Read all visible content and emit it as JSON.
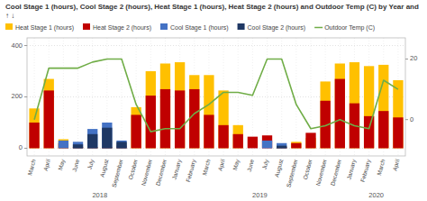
{
  "chart_data": {
    "type": "bar",
    "title": "Cool Stage 1 (hours), Cool Stage 2 (hours), Heat Stage 1 (hours), Heat Stage 2 (hours) and Outdoor Temp (C) by Year and  ↑ ↓",
    "categories": [
      "March",
      "April",
      "May",
      "June",
      "July",
      "August",
      "September",
      "October",
      "November",
      "December",
      "January",
      "February",
      "March",
      "April",
      "May",
      "June",
      "July",
      "August",
      "September",
      "October",
      "November",
      "December",
      "January",
      "February",
      "March",
      "April"
    ],
    "series": [
      {
        "name": "Heat Stage 1 (hours)",
        "type": "bar",
        "color": "#ffc000",
        "values": [
          155,
          270,
          35,
          5,
          5,
          5,
          20,
          160,
          300,
          330,
          335,
          285,
          285,
          225,
          90,
          0,
          0,
          5,
          25,
          40,
          260,
          330,
          335,
          320,
          325,
          265
        ]
      },
      {
        "name": "Heat Stage 2 (hours)",
        "type": "bar",
        "color": "#c00000",
        "values": [
          100,
          225,
          20,
          5,
          5,
          5,
          10,
          130,
          205,
          230,
          225,
          230,
          130,
          90,
          55,
          45,
          50,
          5,
          20,
          60,
          185,
          270,
          175,
          125,
          145,
          120
        ]
      },
      {
        "name": "Cool Stage 1 (hours)",
        "type": "bar",
        "color": "#4472c4",
        "values": [
          0,
          0,
          30,
          25,
          75,
          100,
          30,
          0,
          0,
          0,
          0,
          0,
          0,
          0,
          0,
          0,
          30,
          20,
          0,
          0,
          0,
          0,
          0,
          0,
          0,
          0
        ]
      },
      {
        "name": "Cool Stage 2 (hours)",
        "type": "bar",
        "color": "#1f3864",
        "values": [
          0,
          0,
          0,
          15,
          55,
          80,
          25,
          0,
          0,
          0,
          0,
          0,
          0,
          0,
          0,
          0,
          0,
          10,
          0,
          0,
          0,
          0,
          0,
          0,
          0,
          0
        ]
      },
      {
        "name": "Outdoor Temp (C)",
        "type": "line",
        "color": "#70ad47",
        "axis": "y2",
        "values": [
          0,
          17,
          17,
          17,
          19,
          20,
          20,
          5,
          -4,
          -3,
          -3,
          2,
          5,
          9,
          9,
          8,
          20,
          20,
          5,
          -3,
          -2,
          0,
          -2,
          -3,
          13,
          10
        ]
      }
    ],
    "stacked": false,
    "ylim": [
      -30,
      430
    ],
    "yticks": [
      0,
      200,
      400
    ],
    "y2lim": [
      -12,
      27
    ],
    "y2ticks": [
      0,
      20
    ],
    "grid": true,
    "legend": "top-left",
    "annotations": [
      {
        "text": "2018",
        "x": 4.5
      },
      {
        "text": "2019",
        "x": 15.5
      },
      {
        "text": "2020",
        "x": 23.5
      }
    ]
  }
}
